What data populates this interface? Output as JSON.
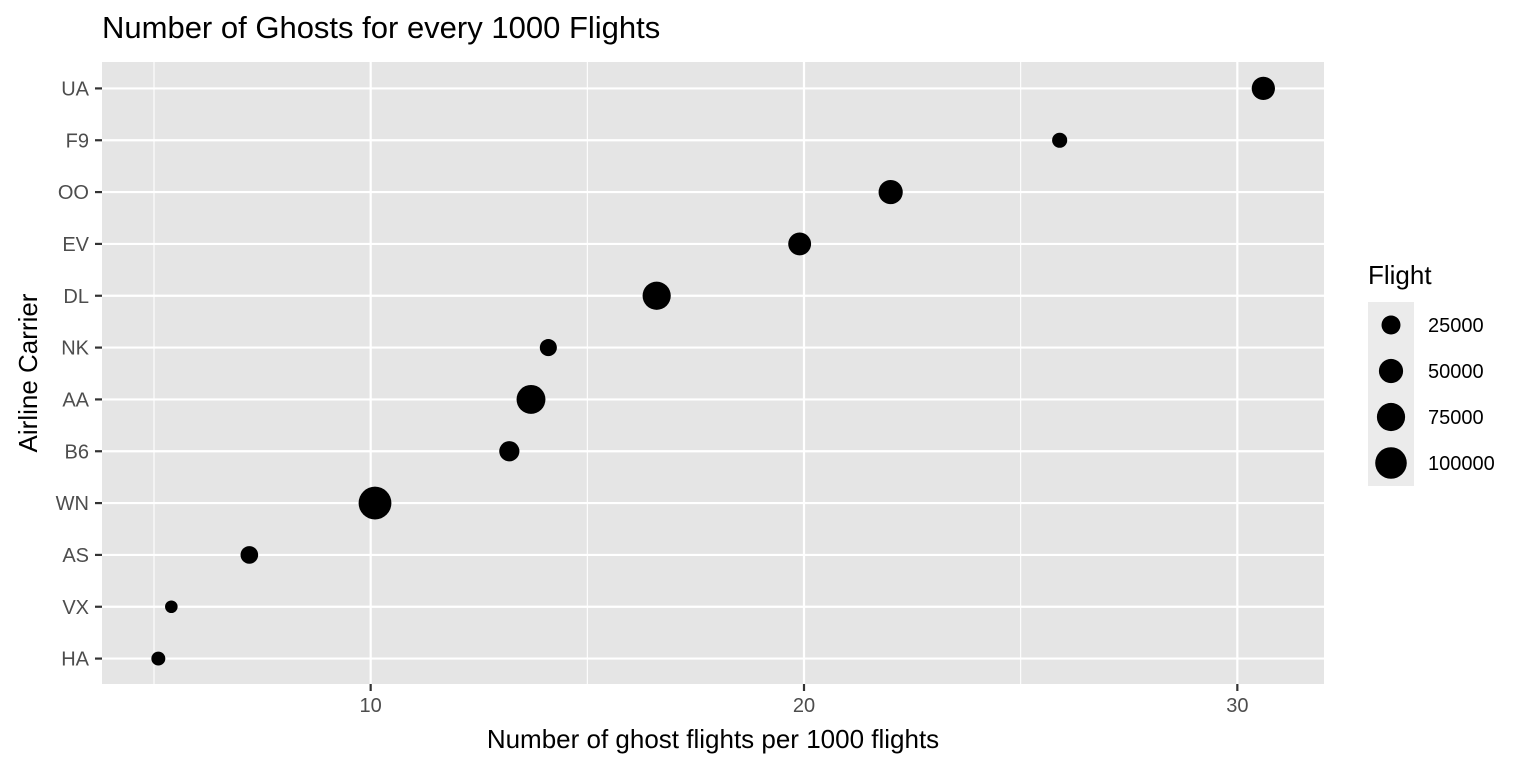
{
  "chart_data": {
    "type": "scatter",
    "title": "Number of Ghosts for every 1000 Flights",
    "xlabel": "Number of ghost flights per 1000 flights",
    "ylabel": "Airline Carrier",
    "xlim": [
      3.8,
      32
    ],
    "x_ticks": [
      10,
      20,
      30
    ],
    "x_minor_ticks": [
      5,
      15,
      25
    ],
    "categories": [
      "HA",
      "VX",
      "AS",
      "WN",
      "B6",
      "AA",
      "NK",
      "DL",
      "EV",
      "OO",
      "F9",
      "UA"
    ],
    "points": [
      {
        "carrier": "UA",
        "x": 30.6,
        "flights": 45000
      },
      {
        "carrier": "F9",
        "x": 25.9,
        "flights": 12000
      },
      {
        "carrier": "OO",
        "x": 22.0,
        "flights": 50000
      },
      {
        "carrier": "EV",
        "x": 19.9,
        "flights": 43000
      },
      {
        "carrier": "DL",
        "x": 16.6,
        "flights": 75000
      },
      {
        "carrier": "NK",
        "x": 14.1,
        "flights": 18000
      },
      {
        "carrier": "AA",
        "x": 13.7,
        "flights": 80000
      },
      {
        "carrier": "B6",
        "x": 13.2,
        "flights": 30000
      },
      {
        "carrier": "WN",
        "x": 10.1,
        "flights": 110000
      },
      {
        "carrier": "AS",
        "x": 7.2,
        "flights": 20000
      },
      {
        "carrier": "VX",
        "x": 5.4,
        "flights": 6000
      },
      {
        "carrier": "HA",
        "x": 5.1,
        "flights": 9000
      }
    ],
    "legend": {
      "title": "Flight",
      "position": "right",
      "entries": [
        {
          "label": "25000",
          "value": 25000
        },
        {
          "label": "50000",
          "value": 50000
        },
        {
          "label": "75000",
          "value": 75000
        },
        {
          "label": "100000",
          "value": 100000
        }
      ]
    },
    "grid": true,
    "colors": {
      "panel": "#e5e5e5",
      "grid": "#ffffff",
      "point": "#000000",
      "tick": "#333333",
      "tick_label": "#4d4d4d",
      "legend_key": "#ebebeb"
    }
  }
}
